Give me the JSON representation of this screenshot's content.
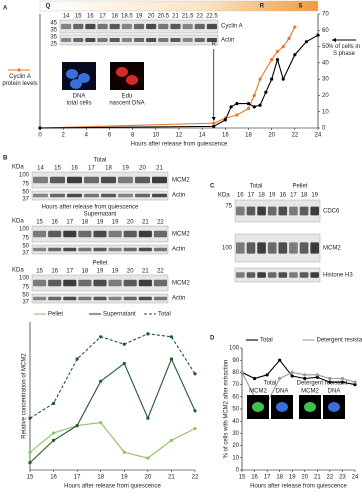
{
  "panel_labels": [
    "A",
    "B",
    "C",
    "D"
  ],
  "blot_a": {
    "phases": [
      "Q",
      "R",
      "S"
    ],
    "kda_label": "KDa",
    "kda": [
      "45",
      "35",
      "35",
      "25"
    ],
    "lanes": [
      "14",
      "15",
      "16",
      "17",
      "18",
      "18.5",
      "19",
      "20",
      "20.5",
      "21",
      "21.5",
      "22",
      "22.5"
    ],
    "bands": [
      "Cyclin A",
      "Actin"
    ],
    "images": [
      "DNA",
      "total cells",
      "Edu",
      "nascent DNA"
    ]
  },
  "blot_b_total": {
    "title": "Total",
    "kda_label": "KDa",
    "kda": [
      "100",
      "75",
      "50",
      "37"
    ],
    "lanes": [
      "14",
      "15",
      "16",
      "17",
      "18",
      "19",
      "20",
      "21"
    ],
    "bands": [
      "MCM2",
      "Actin"
    ],
    "caption": "Hours after release from quiescence"
  },
  "blot_b_sup": {
    "title": "Supernatant",
    "kda_label": "KDa",
    "kda": [
      "100",
      "75",
      "50",
      "37"
    ],
    "lanes": [
      "15",
      "16",
      "17",
      "18",
      "19",
      "19",
      "20",
      "21",
      "22"
    ],
    "bands": [
      "MCM2",
      "Actin"
    ]
  },
  "blot_b_pellet": {
    "title": "Pellet",
    "kda_label": "KDa",
    "kda": [
      "100",
      "75",
      "50",
      "37"
    ],
    "lanes": [
      "15",
      "16",
      "17",
      "18",
      "19",
      "19",
      "20",
      "21",
      "22"
    ],
    "bands": [
      "MCM2",
      "Actin"
    ]
  },
  "blot_c": {
    "groups": [
      "Total",
      "Pellet"
    ],
    "kda_label": "KDa",
    "kda": [
      "75",
      "100"
    ],
    "lanes": [
      "16",
      "17",
      "18",
      "19",
      "16",
      "17",
      "18",
      "19"
    ],
    "bands": [
      "CDC6",
      "MCM2",
      "Histone H3"
    ]
  },
  "inset_d": {
    "groups": [
      "Total",
      "Detergent resistant"
    ],
    "labels": [
      "MCM2",
      "DNA",
      "MCM2",
      "DNA"
    ]
  },
  "chart_data": [
    {
      "type": "line",
      "legend": "sides",
      "xlabel": "Hours after release from quiescence",
      "annotation": {
        "text": "R",
        "x": 15
      },
      "xlim": [
        0,
        24
      ],
      "xticks": [
        0,
        2,
        4,
        6,
        8,
        10,
        12,
        14,
        16,
        18,
        20,
        22,
        24
      ],
      "ylim": [
        0,
        70
      ],
      "y2lim": [
        0,
        70
      ],
      "y2ticks": [
        0,
        10,
        20,
        30,
        40,
        50,
        60,
        70
      ],
      "series": [
        {
          "name": "Cyclin A protein levels",
          "color": "#e8772e",
          "x": [
            0,
            15,
            16,
            17,
            18,
            18.5,
            19,
            20,
            20.5,
            21,
            21.5,
            22
          ],
          "values": [
            0,
            3,
            6,
            8,
            12,
            20,
            30,
            42,
            47,
            50,
            55,
            62
          ]
        },
        {
          "name": "% of cells in S phase",
          "color": "#000000",
          "axis": "y2",
          "x": [
            0,
            15,
            16,
            16.5,
            17,
            18,
            18.5,
            19,
            19.5,
            20,
            20.5,
            21,
            22,
            23,
            24
          ],
          "values": [
            0,
            1,
            5,
            13,
            15,
            15,
            13,
            14,
            22,
            30,
            42,
            30,
            45,
            53,
            57
          ]
        }
      ]
    },
    {
      "type": "line",
      "legend": "top",
      "xlabel": "Hours after release from quiescence",
      "ylabel": "Relative concentration of MCM2",
      "xlim": [
        15,
        22
      ],
      "xticks": [
        15,
        16,
        17,
        18,
        19,
        20,
        21,
        22
      ],
      "ylim": [
        0,
        1
      ],
      "series": [
        {
          "name": "Pellet",
          "color": "#8cc265",
          "x": [
            15,
            16,
            17,
            18,
            19,
            20,
            21,
            22
          ],
          "values": [
            0.12,
            0.25,
            0.3,
            0.32,
            0.12,
            0.08,
            0.2,
            0.28
          ]
        },
        {
          "name": "Supernatant",
          "color": "#1e5a2a",
          "x": [
            15,
            16,
            17,
            18,
            19,
            20,
            21,
            22
          ],
          "values": [
            0.05,
            0.2,
            0.3,
            0.6,
            0.72,
            0.35,
            0.75,
            0.4
          ]
        },
        {
          "name": "Total",
          "color": "#1e5a2a",
          "dash": true,
          "x": [
            15,
            16,
            17,
            18,
            19,
            20,
            21,
            22
          ],
          "values": [
            0.35,
            0.45,
            0.75,
            0.9,
            0.85,
            0.92,
            0.9,
            0.65
          ]
        }
      ]
    },
    {
      "type": "line",
      "legend": "top",
      "xlabel": "Hours after release from quiescence",
      "ylabel": "% of cells with MCM2 after extraction",
      "xlim": [
        15,
        24
      ],
      "xticks": [
        15,
        16,
        17,
        18,
        19,
        20,
        21,
        22,
        23,
        24
      ],
      "ylim": [
        0,
        100
      ],
      "yticks": [
        0,
        10,
        20,
        30,
        40,
        50,
        60,
        70,
        80,
        90,
        100
      ],
      "series": [
        {
          "name": "Total",
          "color": "#000000",
          "x": [
            15,
            16,
            17,
            18,
            19,
            20,
            21,
            22,
            23,
            24
          ],
          "values": [
            80,
            75,
            78,
            90,
            77,
            75,
            76,
            72,
            72,
            70
          ]
        },
        {
          "name": "Detergent resistant",
          "color": "#999999",
          "x": [
            15,
            16,
            17,
            18,
            19,
            20,
            21,
            22,
            23,
            24
          ],
          "values": [
            80,
            60,
            55,
            75,
            80,
            78,
            78,
            75,
            75,
            72
          ]
        }
      ]
    }
  ]
}
